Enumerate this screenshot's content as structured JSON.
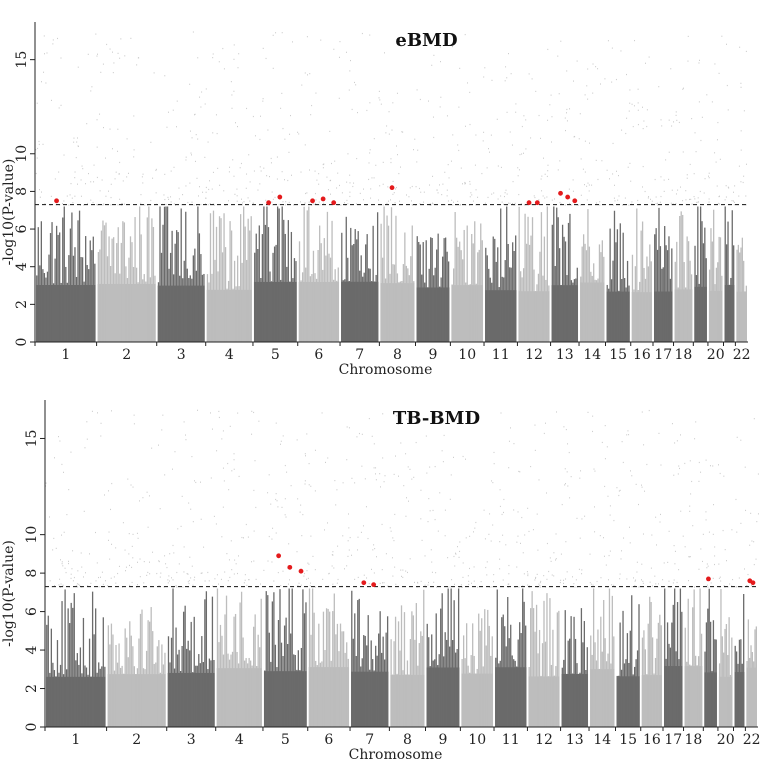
{
  "chart_data": [
    {
      "type": "scatter",
      "subtype": "manhattan",
      "title": "eBMD",
      "xlabel": "Chromosome",
      "ylabel": "-log10(P-value)",
      "ylim": [
        0,
        17
      ],
      "yticks": [
        0,
        2,
        4,
        6,
        8,
        10,
        15
      ],
      "threshold": 7.3,
      "chromosomes": [
        "1",
        "2",
        "3",
        "4",
        "5",
        "6",
        "7",
        "8",
        "9",
        "10",
        "11",
        "12",
        "13",
        "14",
        "15",
        "16",
        "17",
        "18",
        "19",
        "20",
        "21",
        "22"
      ],
      "chromosome_labels": [
        "1",
        "2",
        "3",
        "4",
        "5",
        "6",
        "7",
        "8",
        "9",
        "10",
        "11",
        "12",
        "13",
        "14",
        "15",
        "16",
        "17",
        "18",
        "",
        "20",
        "",
        "22"
      ],
      "colors": {
        "dark": "#6b6b6b",
        "light": "#bdbdbd",
        "significant": "#e41a1c"
      },
      "significant_hits": [
        {
          "chr": "1",
          "y": 7.5
        },
        {
          "chr": "5",
          "y": 7.4
        },
        {
          "chr": "5",
          "y": 7.7
        },
        {
          "chr": "6",
          "y": 7.5
        },
        {
          "chr": "6",
          "y": 7.6
        },
        {
          "chr": "6",
          "y": 7.4
        },
        {
          "chr": "8",
          "y": 8.2
        },
        {
          "chr": "12",
          "y": 7.4
        },
        {
          "chr": "12",
          "y": 7.4
        },
        {
          "chr": "13",
          "y": 7.9
        },
        {
          "chr": "13",
          "y": 7.7
        },
        {
          "chr": "13",
          "y": 7.5
        }
      ]
    },
    {
      "type": "scatter",
      "subtype": "manhattan",
      "title": "TB-BMD",
      "xlabel": "Chromosome",
      "ylabel": "-log10(P-value)",
      "ylim": [
        0,
        17
      ],
      "yticks": [
        0,
        2,
        4,
        6,
        8,
        10,
        15
      ],
      "threshold": 7.3,
      "chromosomes": [
        "1",
        "2",
        "3",
        "4",
        "5",
        "6",
        "7",
        "8",
        "9",
        "10",
        "11",
        "12",
        "13",
        "14",
        "15",
        "16",
        "17",
        "18",
        "19",
        "20",
        "21",
        "22"
      ],
      "chromosome_labels": [
        "1",
        "2",
        "3",
        "4",
        "5",
        "6",
        "7",
        "8",
        "9",
        "10",
        "11",
        "12",
        "13",
        "14",
        "15",
        "16",
        "17",
        "18",
        "",
        "20",
        "",
        "22"
      ],
      "colors": {
        "dark": "#6b6b6b",
        "light": "#bdbdbd",
        "significant": "#e41a1c"
      },
      "significant_hits": [
        {
          "chr": "5",
          "y": 8.9
        },
        {
          "chr": "5",
          "y": 8.3
        },
        {
          "chr": "5",
          "y": 8.1
        },
        {
          "chr": "7",
          "y": 7.5
        },
        {
          "chr": "7",
          "y": 7.4
        },
        {
          "chr": "19",
          "y": 7.7
        },
        {
          "chr": "22",
          "y": 7.6
        },
        {
          "chr": "22",
          "y": 7.5
        }
      ]
    }
  ]
}
